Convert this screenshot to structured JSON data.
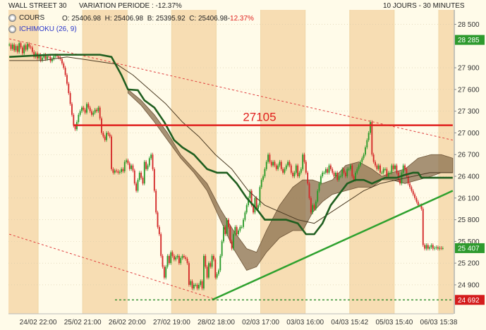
{
  "header": {
    "instrument": "WALL STREET 30",
    "variation_label": "VARIATION PERIODE :",
    "variation_value": "-12.37%",
    "period": "10 JOURS - 30 MINUTES"
  },
  "legend": {
    "cours_label": "COURS",
    "ohlc": {
      "o_label": "O:",
      "o": "25406.98",
      "h_label": "H:",
      "h": "25406.98",
      "b_label": "B:",
      "b": "25395.92",
      "c_label": "C:",
      "c": "25406.98-",
      "change": "12.37%"
    },
    "ichimoku_label": "ICHIMOKU (26, 9)"
  },
  "colors": {
    "background": "#fffbe9",
    "shade": "#f7ddb3",
    "gridline": "#d6c9a8",
    "candle_up": "#2a9b2a",
    "candle_down": "#d42a2a",
    "cloud": "#8a6f4d",
    "ichimoku_line": "#1f5e1f",
    "resistance": "#e0201e",
    "support": "#2ea12e",
    "price_box": "#2e9a2e",
    "low_box": "#d41c1c"
  },
  "chart_data": {
    "type": "candlestick",
    "title": "WALL STREET 30",
    "ylim": [
      24500,
      28700
    ],
    "y_ticks": [
      "28 500",
      "28 285",
      "27 900",
      "27 600",
      "27 300",
      "27 000",
      "26 700",
      "26 400",
      "26 100",
      "25 800",
      "25 500",
      "25 407",
      "25 200",
      "24 900",
      "24 692"
    ],
    "y_tick_values": [
      28500,
      28285,
      27900,
      27600,
      27300,
      27000,
      26700,
      26400,
      26100,
      25800,
      25500,
      25407,
      25200,
      24900,
      24692
    ],
    "x_ticks": [
      "24/02 22:00",
      "25/02 21:00",
      "26/02 20:00",
      "27/02 19:00",
      "28/02 18:00",
      "02/03 17:00",
      "03/03 16:00",
      "04/03 15:42",
      "05/03 15:40",
      "06/03 15:38"
    ],
    "x_tick_index": [
      18,
      45,
      72,
      99,
      126,
      153,
      180,
      207,
      234,
      261
    ],
    "n_bars": 270,
    "close": [
      28220,
      28160,
      28220,
      28140,
      28200,
      28120,
      28240,
      28180,
      28100,
      28210,
      28150,
      28230,
      28190,
      28180,
      28120,
      28050,
      28100,
      28030,
      28080,
      28000,
      28040,
      28080,
      28020,
      28060,
      28050,
      27990,
      28020,
      28060,
      28070,
      28060,
      28040,
      28020,
      27960,
      27900,
      27800,
      27680,
      27550,
      27400,
      27250,
      27100,
      27050,
      27150,
      27250,
      27300,
      27350,
      27320,
      27280,
      27400,
      27350,
      27300,
      27250,
      27280,
      27320,
      27300,
      27350,
      27200,
      27000,
      26950,
      26900,
      27000,
      26980,
      26950,
      26500,
      26450,
      26480,
      26470,
      26450,
      26460,
      26500,
      26470,
      26600,
      26620,
      26580,
      26500,
      26550,
      26480,
      26300,
      26200,
      26350,
      26450,
      26380,
      26300,
      26600,
      26500,
      26550,
      26650,
      26700,
      26500,
      26200,
      25900,
      25700,
      25600,
      25300,
      25150,
      25000,
      25150,
      25300,
      25200,
      25350,
      25300,
      25250,
      25280,
      25300,
      25200,
      25270,
      25300,
      25280,
      25260,
      25200,
      24900,
      24950,
      24850,
      24900,
      24900,
      24850,
      24900,
      24950,
      24850,
      25300,
      25150,
      25000,
      25200,
      25150,
      25300,
      25250,
      25000,
      25050,
      25100,
      25300,
      25500,
      25700,
      25600,
      25800,
      25700,
      25500,
      25400,
      25600,
      25700,
      25600,
      25650,
      25700,
      25700,
      25800,
      25900,
      26000,
      26100,
      26200,
      26000,
      25900,
      26100,
      25950,
      26000,
      26250,
      26350,
      26400,
      26500,
      26600,
      26700,
      26600,
      26550,
      26600,
      26550,
      26500,
      26550,
      26600,
      26500,
      26450,
      26500,
      26550,
      26600,
      26550,
      26450,
      26400,
      26450,
      26550,
      26400,
      26450,
      26500,
      26700,
      26600,
      26450,
      26300,
      26100,
      25900,
      26000,
      25950,
      26050,
      26200,
      26300,
      26400,
      26450,
      26450,
      26500,
      26450,
      26550,
      26500,
      26450,
      26400,
      26450,
      26350,
      26400,
      26400,
      26500,
      26450,
      26400,
      26500,
      26500,
      26550,
      26400,
      26350,
      26450,
      26500,
      26550,
      26600,
      26650,
      26700,
      26800,
      26900,
      27000,
      27150,
      26700,
      26600,
      26550,
      26500,
      26550,
      26450,
      26450,
      26500,
      26500,
      26400,
      26450,
      26450,
      26550,
      26500,
      26550,
      26450,
      26350,
      26300,
      26450,
      26550,
      26500,
      26400,
      26300,
      26250,
      26200,
      26150,
      26100,
      26050,
      26000,
      26000,
      25950,
      25450,
      25400,
      25450,
      25400,
      25420,
      25450,
      25400,
      25410,
      25420,
      25400,
      25410,
      25407,
      25407
    ],
    "tenkan": [
      [
        0,
        28050
      ],
      [
        25,
        28080
      ],
      [
        40,
        28080
      ],
      [
        48,
        28080
      ],
      [
        55,
        28080
      ],
      [
        62,
        28050
      ],
      [
        68,
        27800
      ],
      [
        72,
        27600
      ],
      [
        78,
        27590
      ],
      [
        82,
        27450
      ],
      [
        88,
        27350
      ],
      [
        94,
        27150
      ],
      [
        100,
        26900
      ],
      [
        105,
        26800
      ],
      [
        112,
        26700
      ],
      [
        120,
        26500
      ],
      [
        126,
        26450
      ],
      [
        132,
        26450
      ],
      [
        138,
        26300
      ],
      [
        144,
        26100
      ],
      [
        150,
        25950
      ],
      [
        155,
        25800
      ],
      [
        160,
        25800
      ],
      [
        168,
        25800
      ],
      [
        175,
        25750
      ],
      [
        180,
        25600
      ],
      [
        185,
        25600
      ],
      [
        190,
        25750
      ],
      [
        195,
        26000
      ],
      [
        200,
        26150
      ],
      [
        205,
        26300
      ],
      [
        210,
        26350
      ],
      [
        215,
        26350
      ],
      [
        220,
        26300
      ],
      [
        225,
        26350
      ],
      [
        228,
        26380
      ],
      [
        235,
        26380
      ],
      [
        240,
        26420
      ],
      [
        245,
        26450
      ],
      [
        248,
        26450
      ],
      [
        250,
        26380
      ],
      [
        255,
        26380
      ],
      [
        260,
        26380
      ],
      [
        265,
        26380
      ],
      [
        269,
        26380
      ]
    ],
    "kijun": [
      [
        0,
        28000
      ],
      [
        20,
        28000
      ],
      [
        35,
        28050
      ],
      [
        50,
        28000
      ],
      [
        65,
        27950
      ],
      [
        75,
        27800
      ],
      [
        85,
        27600
      ],
      [
        95,
        27400
      ],
      [
        105,
        27150
      ],
      [
        115,
        26950
      ],
      [
        125,
        26700
      ],
      [
        135,
        26500
      ],
      [
        145,
        26200
      ],
      [
        155,
        26000
      ],
      [
        165,
        25900
      ],
      [
        175,
        25800
      ],
      [
        185,
        25750
      ],
      [
        195,
        25900
      ],
      [
        205,
        26050
      ],
      [
        215,
        26200
      ],
      [
        225,
        26300
      ],
      [
        235,
        26350
      ],
      [
        245,
        26400
      ],
      [
        255,
        26450
      ],
      [
        269,
        26450
      ]
    ],
    "senkou_a": [
      [
        72,
        27600
      ],
      [
        80,
        27450
      ],
      [
        88,
        27250
      ],
      [
        96,
        27000
      ],
      [
        104,
        26700
      ],
      [
        112,
        26500
      ],
      [
        120,
        26300
      ],
      [
        128,
        25950
      ],
      [
        136,
        25650
      ],
      [
        144,
        25400
      ],
      [
        150,
        25350
      ],
      [
        156,
        25650
      ],
      [
        164,
        26000
      ],
      [
        172,
        26250
      ],
      [
        178,
        26350
      ],
      [
        184,
        26350
      ],
      [
        190,
        26300
      ],
      [
        196,
        26350
      ],
      [
        204,
        26550
      ],
      [
        212,
        26600
      ],
      [
        220,
        26500
      ],
      [
        226,
        26400
      ],
      [
        232,
        26450
      ],
      [
        240,
        26500
      ],
      [
        248,
        26650
      ],
      [
        256,
        26700
      ],
      [
        262,
        26700
      ],
      [
        269,
        26650
      ]
    ],
    "senkou_b": [
      [
        72,
        27550
      ],
      [
        80,
        27380
      ],
      [
        88,
        27150
      ],
      [
        96,
        26900
      ],
      [
        104,
        26650
      ],
      [
        112,
        26450
      ],
      [
        120,
        26200
      ],
      [
        128,
        25800
      ],
      [
        136,
        25400
      ],
      [
        144,
        25100
      ],
      [
        150,
        25150
      ],
      [
        156,
        25350
      ],
      [
        164,
        25550
      ],
      [
        172,
        25650
      ],
      [
        178,
        25650
      ],
      [
        184,
        25900
      ],
      [
        190,
        26050
      ],
      [
        196,
        26150
      ],
      [
        204,
        26200
      ],
      [
        212,
        26250
      ],
      [
        220,
        26250
      ],
      [
        226,
        26350
      ],
      [
        232,
        26350
      ],
      [
        240,
        26300
      ],
      [
        248,
        26350
      ],
      [
        256,
        26400
      ],
      [
        262,
        26450
      ],
      [
        269,
        26450
      ]
    ],
    "resistance_line": {
      "value": 27105,
      "label": "27105",
      "x_start": 39,
      "x_end": 269
    },
    "support_trend": [
      [
        123,
        24692
      ],
      [
        269,
        26200
      ]
    ],
    "upper_channel": [
      [
        0,
        28300
      ],
      [
        269,
        26900
      ]
    ],
    "lower_channel": [
      [
        0,
        25600
      ],
      [
        125,
        24700
      ]
    ],
    "low_line": {
      "value": 24692,
      "label": "24 692"
    },
    "last_price": {
      "value": 25407,
      "label": "25 407"
    },
    "high_box": {
      "value": 28285,
      "label": "28 285"
    }
  }
}
